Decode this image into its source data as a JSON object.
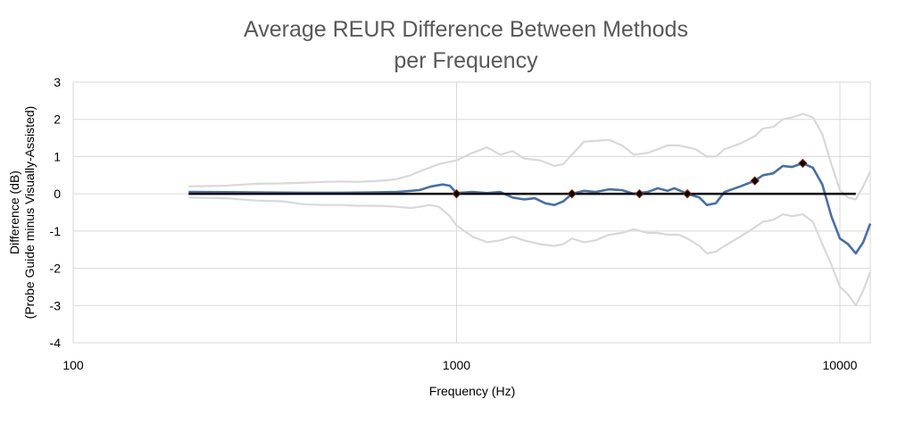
{
  "chart_data": {
    "type": "line",
    "title_lines": [
      "Average REUR Difference Between Methods",
      "per Frequency"
    ],
    "xlabel": "Frequency (Hz)",
    "ylabel_lines": [
      "Difference (dB)",
      "(Probe Guide minus Visually-Assisted)"
    ],
    "x_scale": "log",
    "xlim": [
      100,
      12000
    ],
    "ylim": [
      -4,
      3
    ],
    "x_ticks": [
      {
        "value": 100,
        "label": "100"
      },
      {
        "value": 1000,
        "label": "1000"
      },
      {
        "value": 10000,
        "label": "10000"
      }
    ],
    "y_ticks": [
      {
        "value": 3,
        "label": "3"
      },
      {
        "value": 2,
        "label": "2"
      },
      {
        "value": 1,
        "label": "1"
      },
      {
        "value": 0,
        "label": "0"
      },
      {
        "value": -1,
        "label": "-1"
      },
      {
        "value": -2,
        "label": "-2"
      },
      {
        "value": -3,
        "label": "-3"
      },
      {
        "value": -4,
        "label": "-4"
      }
    ],
    "grid": true,
    "zero_line": {
      "y": 0,
      "x_from": 200,
      "x_to": 11000,
      "color": "#000000"
    },
    "colors": {
      "mean": "#4A6FA5",
      "bounds": "#D9D9D9",
      "grid": "#D9D9D9",
      "marker_outline": "#8B2500",
      "marker_fill": "#000000"
    },
    "series": [
      {
        "role": "upper-bound",
        "points": [
          [
            200,
            0.2
          ],
          [
            250,
            0.22
          ],
          [
            300,
            0.27
          ],
          [
            350,
            0.28
          ],
          [
            400,
            0.3
          ],
          [
            450,
            0.32
          ],
          [
            500,
            0.33
          ],
          [
            550,
            0.32
          ],
          [
            600,
            0.34
          ],
          [
            650,
            0.36
          ],
          [
            700,
            0.4
          ],
          [
            760,
            0.5
          ],
          [
            800,
            0.6
          ],
          [
            850,
            0.7
          ],
          [
            900,
            0.8
          ],
          [
            950,
            0.85
          ],
          [
            1000,
            0.9
          ],
          [
            1100,
            1.1
          ],
          [
            1200,
            1.25
          ],
          [
            1300,
            1.05
          ],
          [
            1400,
            1.15
          ],
          [
            1500,
            0.95
          ],
          [
            1650,
            0.9
          ],
          [
            1800,
            0.75
          ],
          [
            1900,
            0.8
          ],
          [
            2000,
            1.05
          ],
          [
            2150,
            1.4
          ],
          [
            2300,
            1.42
          ],
          [
            2500,
            1.45
          ],
          [
            2700,
            1.3
          ],
          [
            2900,
            1.05
          ],
          [
            3150,
            1.1
          ],
          [
            3350,
            1.2
          ],
          [
            3550,
            1.3
          ],
          [
            3800,
            1.3
          ],
          [
            4000,
            1.25
          ],
          [
            4200,
            1.2
          ],
          [
            4500,
            1.0
          ],
          [
            4750,
            1.0
          ],
          [
            5000,
            1.2
          ],
          [
            5500,
            1.35
          ],
          [
            6000,
            1.55
          ],
          [
            6300,
            1.75
          ],
          [
            6700,
            1.8
          ],
          [
            7100,
            2.0
          ],
          [
            7500,
            2.05
          ],
          [
            8000,
            2.15
          ],
          [
            8500,
            2.05
          ],
          [
            9000,
            1.6
          ],
          [
            9500,
            0.8
          ],
          [
            10000,
            0.1
          ],
          [
            10500,
            -0.1
          ],
          [
            11000,
            -0.15
          ],
          [
            11500,
            0.2
          ],
          [
            12000,
            0.6
          ]
        ]
      },
      {
        "role": "mean",
        "points": [
          [
            200,
            0.05
          ],
          [
            300,
            0.04
          ],
          [
            400,
            0.03
          ],
          [
            500,
            0.03
          ],
          [
            600,
            0.04
          ],
          [
            700,
            0.05
          ],
          [
            800,
            0.1
          ],
          [
            860,
            0.2
          ],
          [
            920,
            0.25
          ],
          [
            960,
            0.22
          ],
          [
            1000,
            0.02
          ],
          [
            1100,
            0.05
          ],
          [
            1200,
            0.02
          ],
          [
            1300,
            0.05
          ],
          [
            1400,
            -0.1
          ],
          [
            1500,
            -0.15
          ],
          [
            1600,
            -0.12
          ],
          [
            1700,
            -0.25
          ],
          [
            1800,
            -0.3
          ],
          [
            1900,
            -0.2
          ],
          [
            2000,
            0.0
          ],
          [
            2150,
            0.08
          ],
          [
            2300,
            0.05
          ],
          [
            2500,
            0.12
          ],
          [
            2700,
            0.1
          ],
          [
            2900,
            0.0
          ],
          [
            3150,
            0.05
          ],
          [
            3350,
            0.15
          ],
          [
            3550,
            0.08
          ],
          [
            3700,
            0.15
          ],
          [
            3800,
            0.1
          ],
          [
            4000,
            0.0
          ],
          [
            4300,
            -0.1
          ],
          [
            4500,
            -0.3
          ],
          [
            4750,
            -0.25
          ],
          [
            5000,
            0.05
          ],
          [
            5500,
            0.2
          ],
          [
            6000,
            0.35
          ],
          [
            6300,
            0.5
          ],
          [
            6700,
            0.55
          ],
          [
            7100,
            0.75
          ],
          [
            7500,
            0.72
          ],
          [
            8000,
            0.82
          ],
          [
            8500,
            0.7
          ],
          [
            9000,
            0.25
          ],
          [
            9500,
            -0.6
          ],
          [
            10000,
            -1.2
          ],
          [
            10500,
            -1.35
          ],
          [
            11000,
            -1.6
          ],
          [
            11500,
            -1.3
          ],
          [
            12000,
            -0.8
          ]
        ]
      },
      {
        "role": "lower-bound",
        "points": [
          [
            200,
            -0.1
          ],
          [
            250,
            -0.12
          ],
          [
            300,
            -0.18
          ],
          [
            350,
            -0.2
          ],
          [
            400,
            -0.28
          ],
          [
            450,
            -0.3
          ],
          [
            500,
            -0.3
          ],
          [
            550,
            -0.32
          ],
          [
            600,
            -0.32
          ],
          [
            650,
            -0.33
          ],
          [
            700,
            -0.35
          ],
          [
            760,
            -0.38
          ],
          [
            800,
            -0.35
          ],
          [
            850,
            -0.3
          ],
          [
            900,
            -0.35
          ],
          [
            960,
            -0.6
          ],
          [
            1000,
            -0.85
          ],
          [
            1100,
            -1.15
          ],
          [
            1200,
            -1.3
          ],
          [
            1300,
            -1.25
          ],
          [
            1400,
            -1.15
          ],
          [
            1500,
            -1.25
          ],
          [
            1650,
            -1.35
          ],
          [
            1800,
            -1.4
          ],
          [
            1900,
            -1.35
          ],
          [
            2000,
            -1.2
          ],
          [
            2150,
            -1.3
          ],
          [
            2300,
            -1.25
          ],
          [
            2500,
            -1.1
          ],
          [
            2700,
            -1.05
          ],
          [
            2900,
            -0.95
          ],
          [
            3150,
            -1.05
          ],
          [
            3350,
            -1.05
          ],
          [
            3550,
            -1.1
          ],
          [
            3800,
            -1.1
          ],
          [
            4000,
            -1.2
          ],
          [
            4300,
            -1.4
          ],
          [
            4500,
            -1.6
          ],
          [
            4750,
            -1.55
          ],
          [
            5000,
            -1.4
          ],
          [
            5500,
            -1.15
          ],
          [
            6000,
            -0.9
          ],
          [
            6300,
            -0.75
          ],
          [
            6700,
            -0.7
          ],
          [
            7100,
            -0.55
          ],
          [
            7500,
            -0.6
          ],
          [
            8000,
            -0.55
          ],
          [
            8500,
            -0.75
          ],
          [
            9000,
            -1.35
          ],
          [
            9500,
            -1.9
          ],
          [
            10000,
            -2.5
          ],
          [
            10500,
            -2.7
          ],
          [
            11000,
            -3.0
          ],
          [
            11500,
            -2.6
          ],
          [
            12000,
            -2.1
          ]
        ]
      }
    ],
    "markers": [
      [
        1000,
        0.0
      ],
      [
        2000,
        0.0
      ],
      [
        3000,
        0.0
      ],
      [
        4000,
        0.0
      ],
      [
        6000,
        0.35
      ],
      [
        8000,
        0.82
      ]
    ]
  }
}
